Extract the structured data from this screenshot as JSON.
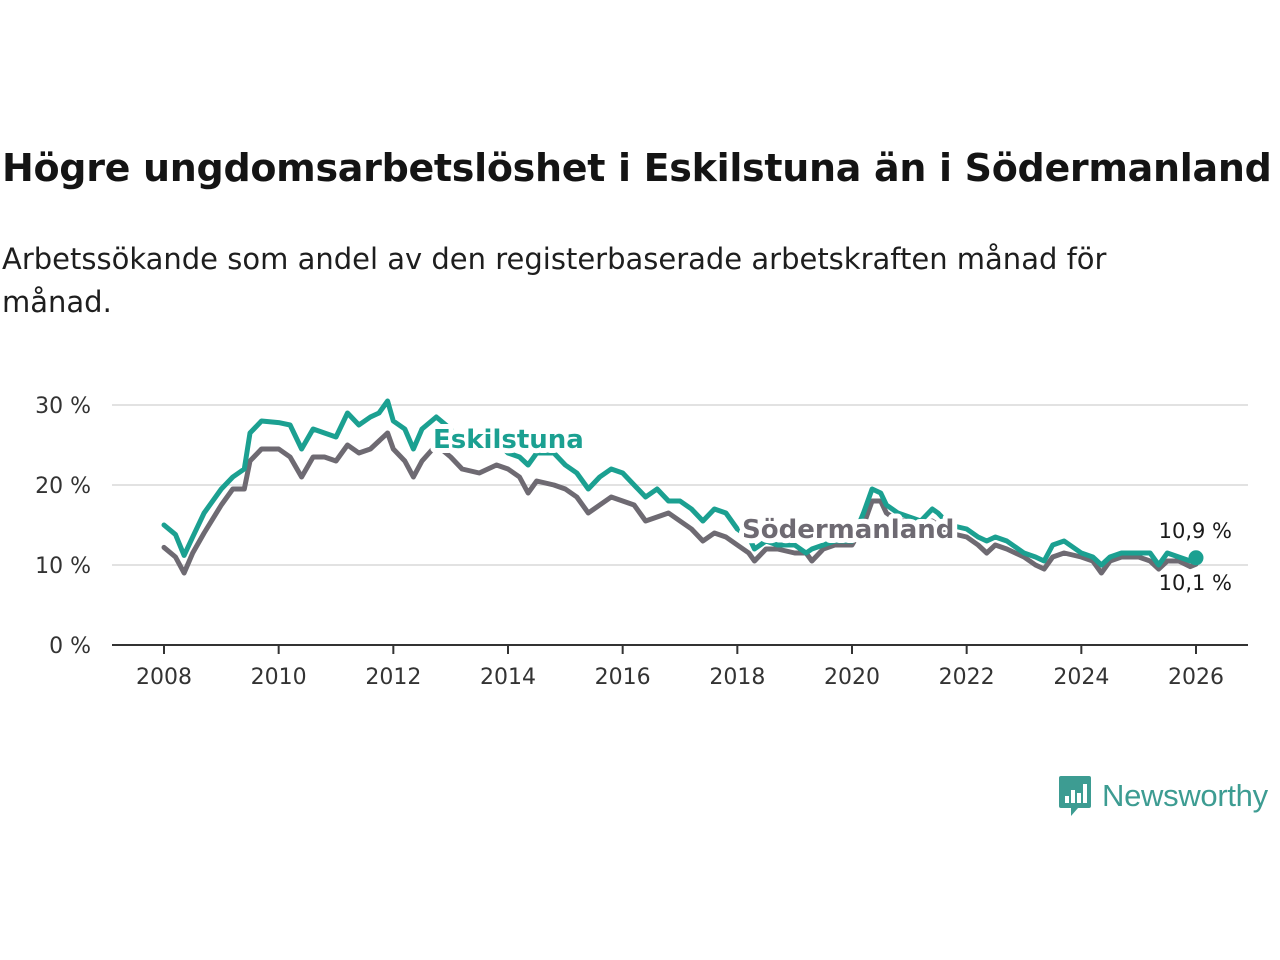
{
  "title": "Högre ungdomsarbetslöshet i Eskilstuna än i Södermanland",
  "subtitle": "Arbetssökande som andel av den registerbaserade arbetskraften månad för månad.",
  "brand": {
    "name": "Newsworthy",
    "color": "#3d9c92"
  },
  "chart_data": {
    "type": "line",
    "title": "Högre ungdomsarbetslöshet i Eskilstuna än i Södermanland",
    "xlabel": "",
    "ylabel": "",
    "ylim": [
      0,
      30
    ],
    "xlim": [
      2008,
      2026
    ],
    "grid": true,
    "x_ticks": [
      2008,
      2010,
      2012,
      2014,
      2016,
      2018,
      2020,
      2022,
      2024,
      2026
    ],
    "x_tick_labels": [
      "2008",
      "2010",
      "2012",
      "2014",
      "2016",
      "2018",
      "2020",
      "2022",
      "2024",
      "2026"
    ],
    "y_ticks": [
      0,
      10,
      20,
      30
    ],
    "y_tick_labels": [
      "0 %",
      "10 %",
      "20 %",
      "30 %"
    ],
    "series": [
      {
        "name": "Eskilstuna",
        "color": "#1ba091",
        "x": [
          2008.0,
          2008.2,
          2008.35,
          2008.5,
          2008.7,
          2009.0,
          2009.2,
          2009.4,
          2009.5,
          2009.7,
          2010.0,
          2010.2,
          2010.4,
          2010.6,
          2010.8,
          2011.0,
          2011.2,
          2011.4,
          2011.6,
          2011.75,
          2011.9,
          2012.0,
          2012.2,
          2012.35,
          2012.5,
          2012.75,
          2013.0,
          2013.2,
          2013.5,
          2013.8,
          2014.0,
          2014.2,
          2014.35,
          2014.5,
          2014.8,
          2015.0,
          2015.2,
          2015.4,
          2015.6,
          2015.8,
          2016.0,
          2016.2,
          2016.4,
          2016.6,
          2016.8,
          2017.0,
          2017.2,
          2017.4,
          2017.6,
          2017.8,
          2018.0,
          2018.2,
          2018.3,
          2018.5,
          2018.7,
          2019.0,
          2019.2,
          2019.3,
          2019.5,
          2019.7,
          2020.0,
          2020.2,
          2020.35,
          2020.5,
          2020.6,
          2020.8,
          2021.0,
          2021.2,
          2021.4,
          2021.5,
          2021.7,
          2022.0,
          2022.2,
          2022.35,
          2022.5,
          2022.7,
          2023.0,
          2023.2,
          2023.35,
          2023.5,
          2023.7,
          2024.0,
          2024.2,
          2024.35,
          2024.5,
          2024.7,
          2025.0,
          2025.2,
          2025.35,
          2025.5,
          2025.7,
          2025.9,
          2026.0
        ],
        "values": [
          15.0,
          13.8,
          11.2,
          13.5,
          16.5,
          19.5,
          21.0,
          22.0,
          26.5,
          28.0,
          27.8,
          27.5,
          24.5,
          27.0,
          26.5,
          26.0,
          29.0,
          27.5,
          28.5,
          29.0,
          30.5,
          28.0,
          27.0,
          24.5,
          27.0,
          28.5,
          27.0,
          25.0,
          24.5,
          25.5,
          24.0,
          23.5,
          22.5,
          24.0,
          24.0,
          22.5,
          21.5,
          19.5,
          21.0,
          22.0,
          21.5,
          20.0,
          18.5,
          19.5,
          18.0,
          18.0,
          17.0,
          15.5,
          17.0,
          16.5,
          14.5,
          13.5,
          12.0,
          13.0,
          12.5,
          12.5,
          11.5,
          12.0,
          12.5,
          13.0,
          13.0,
          16.5,
          19.5,
          19.0,
          17.5,
          16.5,
          16.0,
          15.5,
          17.0,
          16.5,
          15.0,
          14.5,
          13.5,
          13.0,
          13.5,
          13.0,
          11.5,
          11.0,
          10.5,
          12.5,
          13.0,
          11.5,
          11.0,
          10.0,
          11.0,
          11.5,
          11.5,
          11.5,
          10.0,
          11.5,
          11.0,
          10.5,
          10.9
        ]
      },
      {
        "name": "Södermanland",
        "color": "#6e6a72",
        "x": [
          2008.0,
          2008.2,
          2008.35,
          2008.5,
          2008.7,
          2009.0,
          2009.2,
          2009.4,
          2009.5,
          2009.7,
          2010.0,
          2010.2,
          2010.4,
          2010.6,
          2010.8,
          2011.0,
          2011.2,
          2011.4,
          2011.6,
          2011.75,
          2011.9,
          2012.0,
          2012.2,
          2012.35,
          2012.5,
          2012.75,
          2013.0,
          2013.2,
          2013.5,
          2013.8,
          2014.0,
          2014.2,
          2014.35,
          2014.5,
          2014.8,
          2015.0,
          2015.2,
          2015.4,
          2015.6,
          2015.8,
          2016.0,
          2016.2,
          2016.4,
          2016.6,
          2016.8,
          2017.0,
          2017.2,
          2017.4,
          2017.6,
          2017.8,
          2018.0,
          2018.2,
          2018.3,
          2018.5,
          2018.7,
          2019.0,
          2019.2,
          2019.3,
          2019.5,
          2019.7,
          2020.0,
          2020.2,
          2020.35,
          2020.5,
          2020.6,
          2020.8,
          2021.0,
          2021.2,
          2021.4,
          2021.5,
          2021.7,
          2022.0,
          2022.2,
          2022.35,
          2022.5,
          2022.7,
          2023.0,
          2023.2,
          2023.35,
          2023.5,
          2023.7,
          2024.0,
          2024.2,
          2024.35,
          2024.5,
          2024.7,
          2025.0,
          2025.2,
          2025.35,
          2025.5,
          2025.7,
          2025.9,
          2026.0
        ],
        "values": [
          12.2,
          11.0,
          9.0,
          11.5,
          14.0,
          17.5,
          19.5,
          19.5,
          23.0,
          24.5,
          24.5,
          23.5,
          21.0,
          23.5,
          23.5,
          23.0,
          25.0,
          24.0,
          24.5,
          25.5,
          26.5,
          24.5,
          23.0,
          21.0,
          23.0,
          25.0,
          23.5,
          22.0,
          21.5,
          22.5,
          22.0,
          21.0,
          19.0,
          20.5,
          20.0,
          19.5,
          18.5,
          16.5,
          17.5,
          18.5,
          18.0,
          17.5,
          15.5,
          16.0,
          16.5,
          15.5,
          14.5,
          13.0,
          14.0,
          13.5,
          12.5,
          11.5,
          10.5,
          12.0,
          12.0,
          11.5,
          11.5,
          10.5,
          12.0,
          12.5,
          12.5,
          15.0,
          18.0,
          18.0,
          16.5,
          15.5,
          15.5,
          15.0,
          15.5,
          15.0,
          14.0,
          13.5,
          12.5,
          11.5,
          12.5,
          12.0,
          11.0,
          10.0,
          9.5,
          11.0,
          11.5,
          11.0,
          10.5,
          9.0,
          10.5,
          11.0,
          11.0,
          10.5,
          9.5,
          10.5,
          10.5,
          9.8,
          10.1
        ]
      }
    ],
    "annotations": [
      {
        "series": "Eskilstuna",
        "text": "Eskilstuna"
      },
      {
        "series": "Södermanland",
        "text": "Södermanland"
      }
    ],
    "end_labels": [
      {
        "series": "Eskilstuna",
        "text": "10,9 %"
      },
      {
        "series": "Södermanland",
        "text": "10,1 %"
      }
    ]
  }
}
